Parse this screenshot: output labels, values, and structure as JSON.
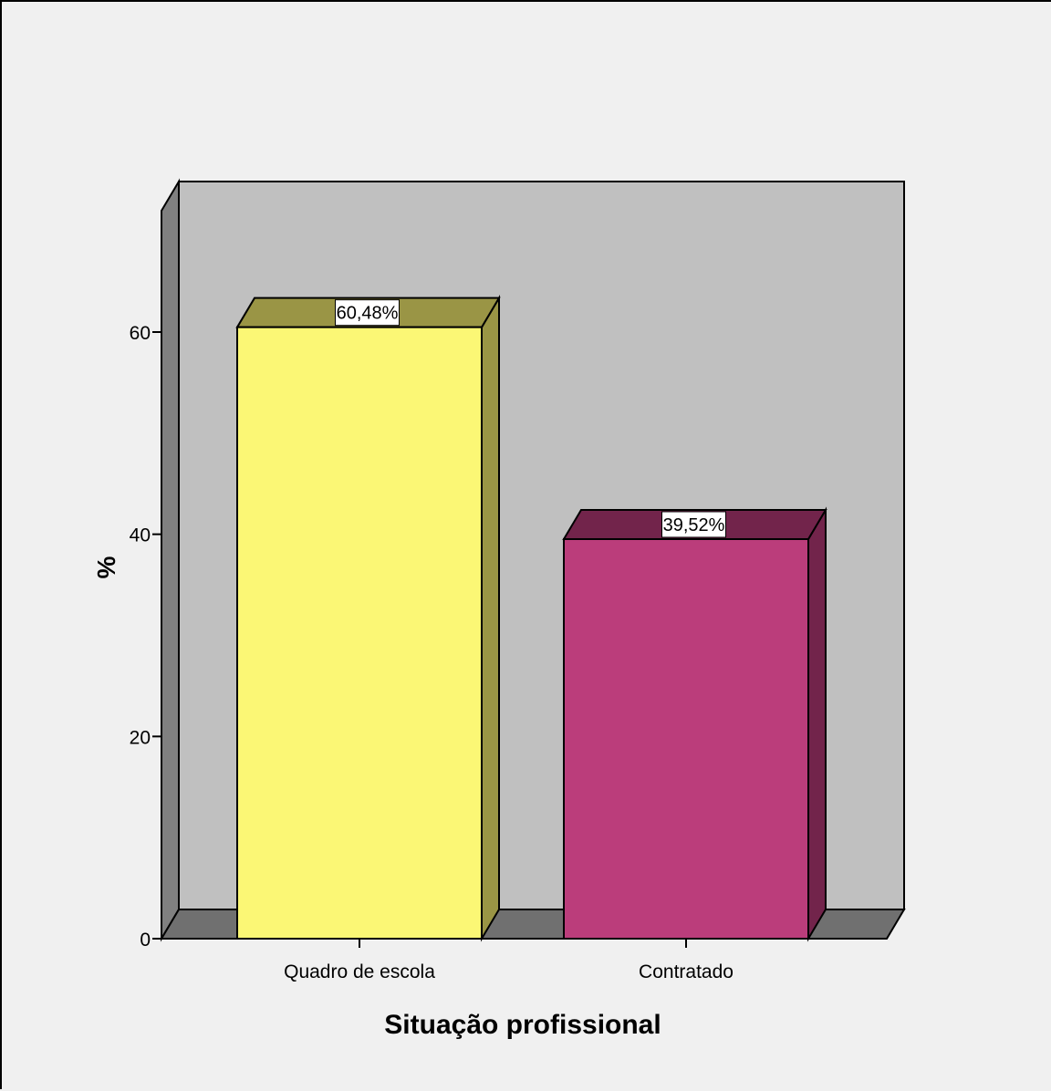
{
  "chart_data": {
    "type": "bar",
    "style": "3d",
    "categories": [
      "Quadro de escola",
      "Contratado"
    ],
    "values": [
      60.48,
      39.52
    ],
    "data_labels": [
      "60,48%",
      "39,52%"
    ],
    "ylabel": "%",
    "xlabel": "Situação profissional",
    "ylim": [
      0,
      72
    ],
    "yticks": [
      0,
      20,
      40,
      60
    ],
    "ytick_labels": [
      "0",
      "20",
      "40",
      "60"
    ],
    "grid": false,
    "legend": "none",
    "colors": {
      "background": "#f0f0f0",
      "plot_back_wall": "#c0c0c0",
      "plot_side_wall": "#808080",
      "plot_floor": "#707070",
      "bars": [
        {
          "front": "#fbf775",
          "top": "#9a9545",
          "side": "#9a9545"
        },
        {
          "front": "#bb3d7b",
          "top": "#72244b",
          "side": "#72244b"
        }
      ]
    }
  }
}
